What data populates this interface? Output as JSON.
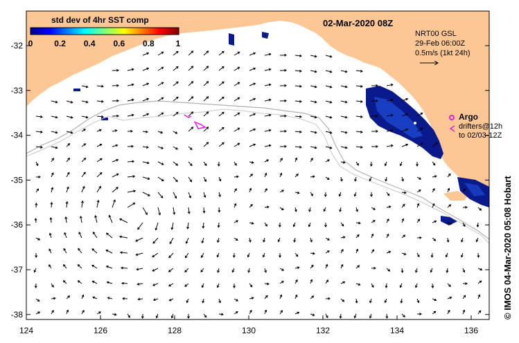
{
  "map": {
    "date_title": "02-Mar-2020 08Z",
    "x_ticks": [
      "124",
      "126",
      "128",
      "130",
      "132",
      "134",
      "136"
    ],
    "y_ticks": [
      "-32",
      "-33",
      "-34",
      "-35",
      "-36",
      "-37",
      "-38"
    ],
    "colorbar": {
      "title": "std dev of 4hr SST comp",
      "ticks": [
        "0",
        "0.2",
        "0.4",
        "0.6",
        "0.8",
        "1"
      ]
    },
    "current_legend": {
      "source": "NRT00 GSL",
      "time": "29-Feb 06:00Z",
      "scale": "0.5m/s (1kt 24h)"
    },
    "argo_label": "Argo",
    "drifter_label_1": "drifters@12h",
    "drifter_label_2": "to 02/03-12Z",
    "credit": "© IMOS 04-Mar-2020 05:08 Hobart",
    "colors": {
      "land": "#fcc795",
      "ocean": "#ffffff",
      "argo": "#e020e0",
      "sst_dark": "#0a1a8c",
      "sst_mid": "#1e50d8",
      "isobath": "#b0b0b0"
    }
  }
}
